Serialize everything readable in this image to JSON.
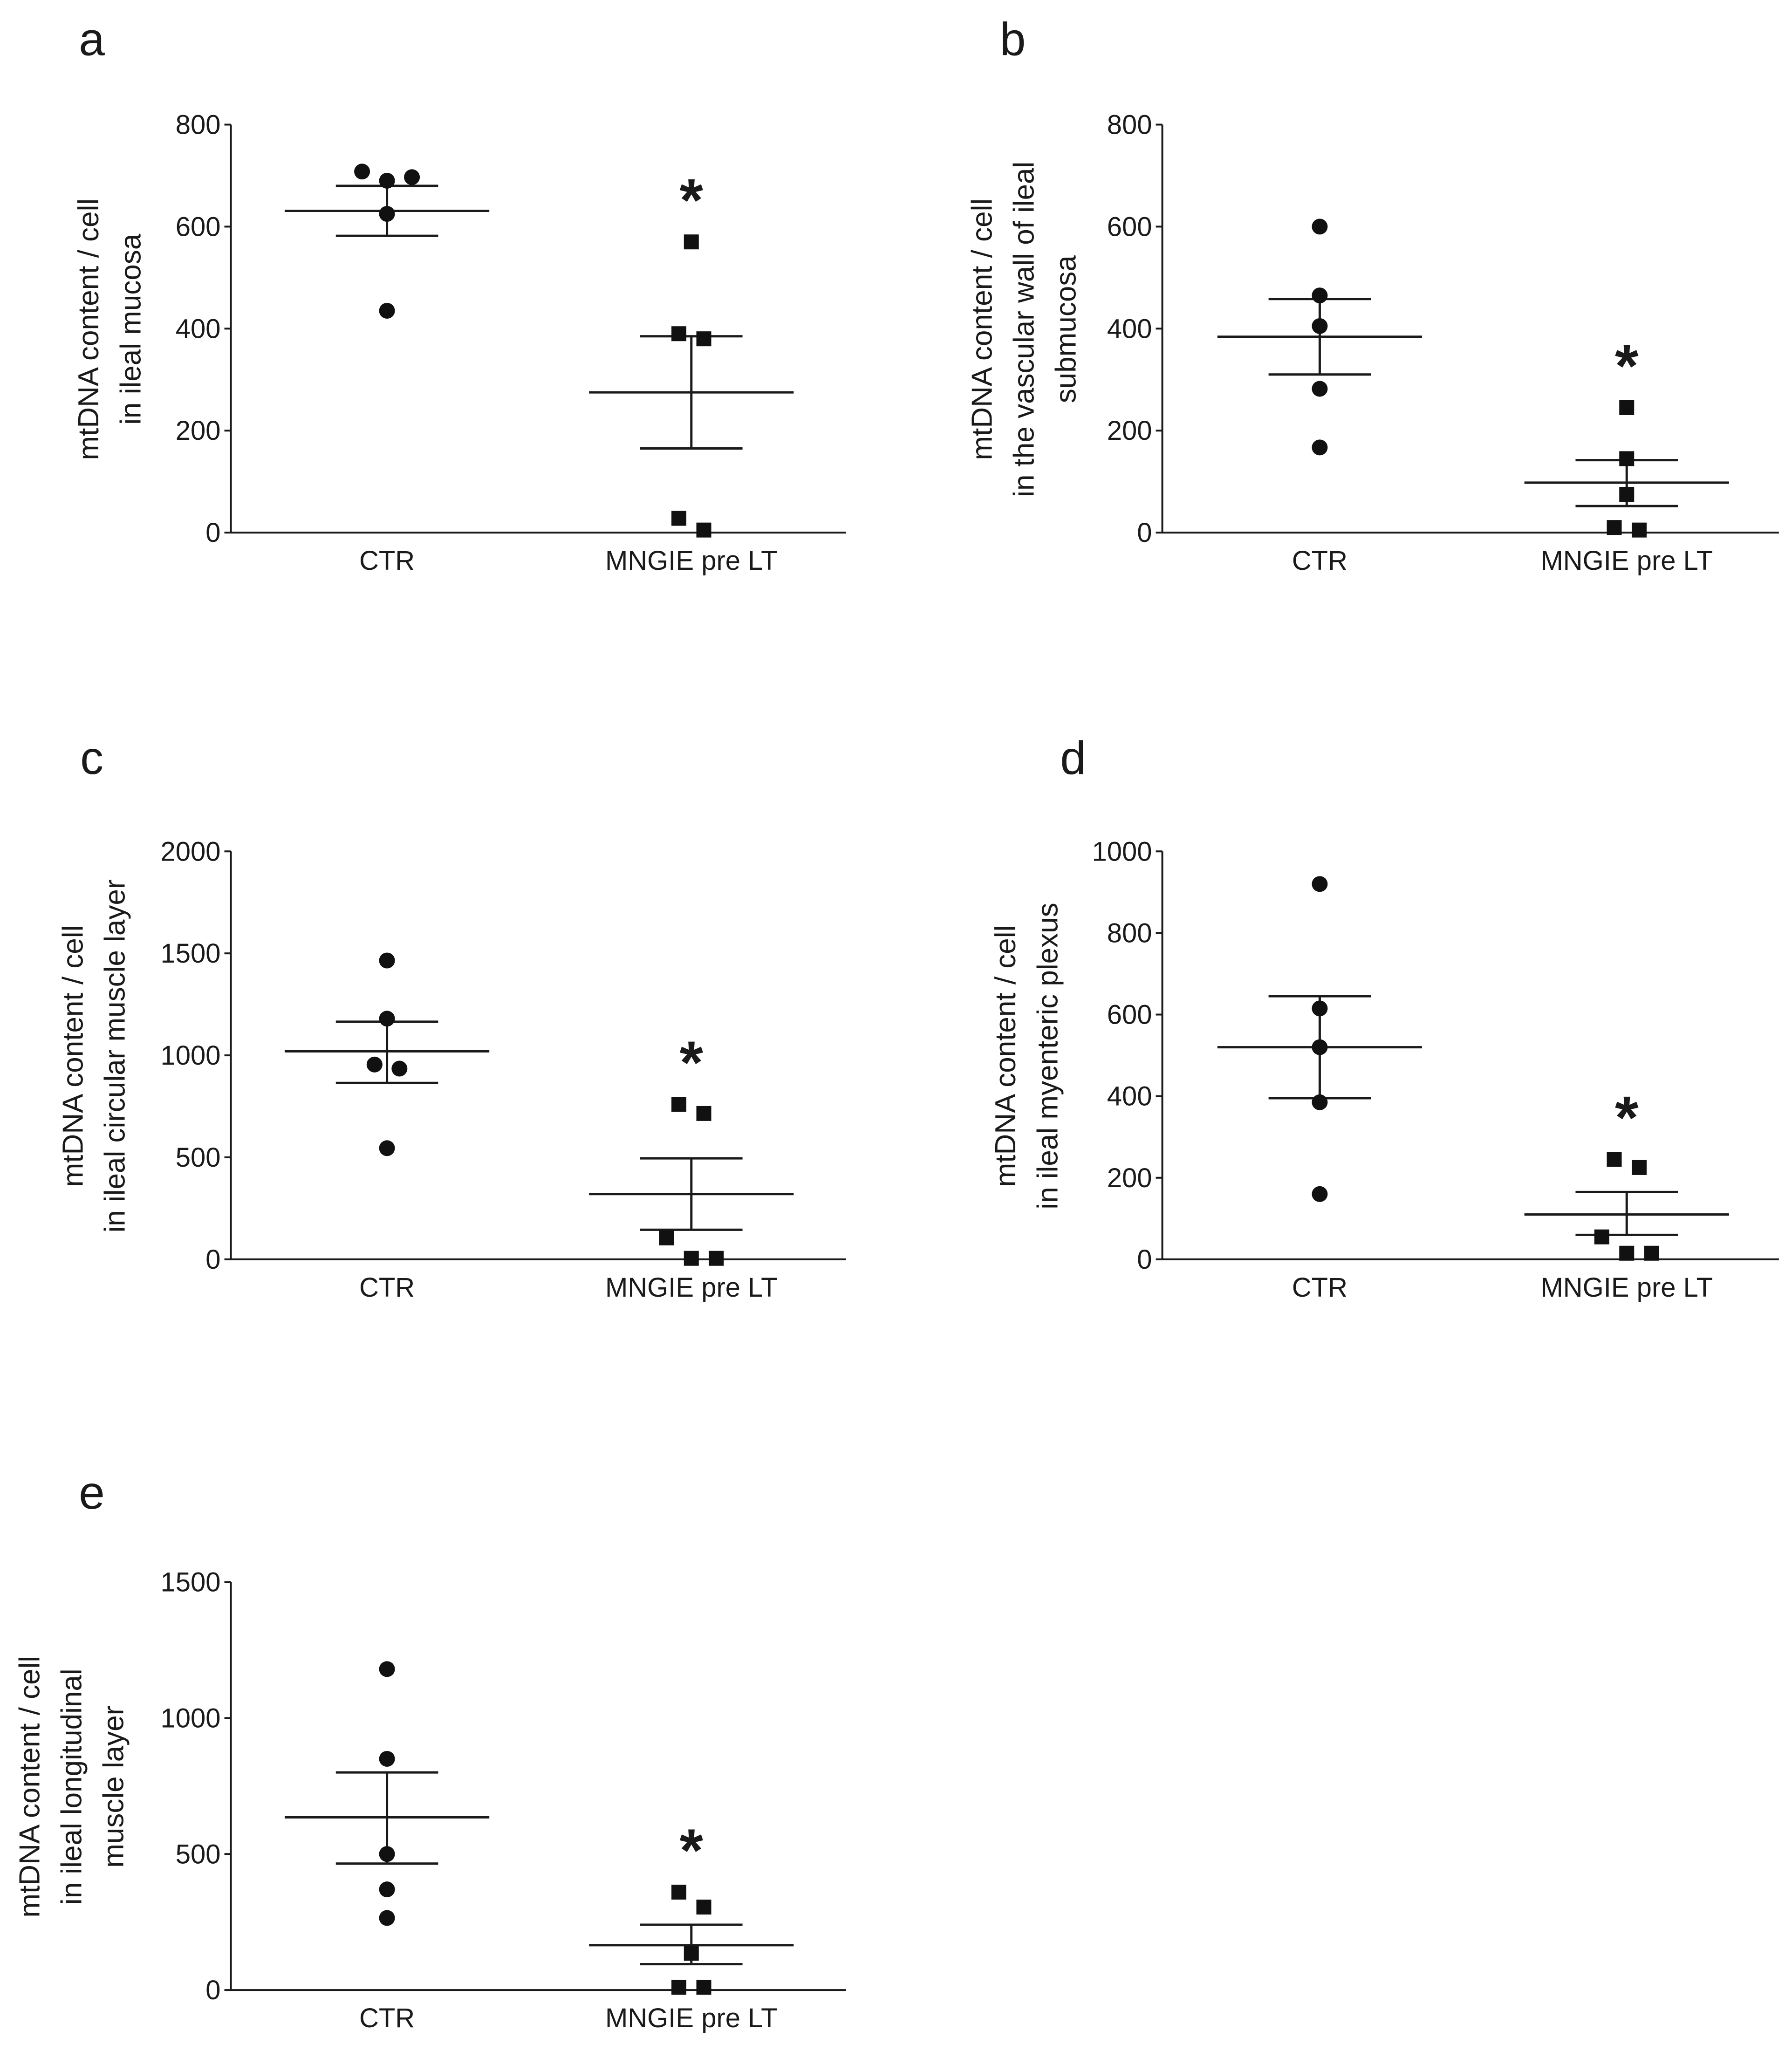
{
  "chart_data": [
    {
      "panel": "a",
      "type": "scatter",
      "ylabel": [
        "mtDNA content / cell",
        "in ileal mucosa"
      ],
      "ylim": [
        0,
        800
      ],
      "yticks": [
        0,
        200,
        400,
        600,
        800
      ],
      "categories": [
        "CTR",
        "MNGIE pre LT"
      ],
      "groups": [
        {
          "category": "CTR",
          "marker": "circle",
          "values": [
            708,
            690,
            697,
            625,
            435
          ],
          "mean": 631,
          "sem_low": 582,
          "sem_high": 680
        },
        {
          "category": "MNGIE pre LT",
          "marker": "square",
          "values": [
            570,
            390,
            380,
            28,
            5
          ],
          "mean": 275,
          "sem_low": 165,
          "sem_high": 385
        }
      ],
      "significance": "*"
    },
    {
      "panel": "b",
      "type": "scatter",
      "ylabel": [
        "mtDNA content / cell",
        "in the vascular wall of ileal",
        "submucosa"
      ],
      "ylim": [
        0,
        800
      ],
      "yticks": [
        0,
        200,
        400,
        600,
        800
      ],
      "categories": [
        "CTR",
        "MNGIE pre LT"
      ],
      "groups": [
        {
          "category": "CTR",
          "marker": "circle",
          "values": [
            600,
            465,
            405,
            282,
            167
          ],
          "mean": 384,
          "sem_low": 310,
          "sem_high": 458
        },
        {
          "category": "MNGIE pre LT",
          "marker": "square",
          "values": [
            245,
            145,
            75,
            10,
            5
          ],
          "mean": 98,
          "sem_low": 52,
          "sem_high": 142
        },
        {
          "category": "",
          "marker": "none",
          "values": []
        }
      ],
      "significance": "*"
    },
    {
      "panel": "c",
      "type": "scatter",
      "ylabel": [
        "mtDNA content / cell",
        "in ileal circular muscle layer"
      ],
      "ylim": [
        0,
        2000
      ],
      "yticks": [
        0,
        500,
        1000,
        1500,
        2000
      ],
      "categories": [
        "CTR",
        "MNGIE pre LT"
      ],
      "groups": [
        {
          "category": "CTR",
          "marker": "circle",
          "values": [
            1465,
            1180,
            955,
            935,
            545
          ],
          "mean": 1020,
          "sem_low": 865,
          "sem_high": 1165
        },
        {
          "category": "MNGIE pre LT",
          "marker": "square",
          "values": [
            760,
            715,
            105,
            5,
            5
          ],
          "mean": 320,
          "sem_low": 145,
          "sem_high": 495
        }
      ],
      "significance": "*"
    },
    {
      "panel": "d",
      "type": "scatter",
      "ylabel": [
        "mtDNA content / cell",
        "in ileal myenteric plexus"
      ],
      "ylim": [
        0,
        1000
      ],
      "yticks": [
        0,
        200,
        400,
        600,
        800,
        1000
      ],
      "categories": [
        "CTR",
        "MNGIE pre LT"
      ],
      "groups": [
        {
          "category": "CTR",
          "marker": "circle",
          "values": [
            920,
            615,
            520,
            385,
            160
          ],
          "mean": 520,
          "sem_low": 395,
          "sem_high": 645
        },
        {
          "category": "MNGIE pre LT",
          "marker": "square",
          "values": [
            245,
            225,
            55,
            15,
            15
          ],
          "mean": 110,
          "sem_low": 60,
          "sem_high": 165
        }
      ],
      "significance": "*"
    },
    {
      "panel": "e",
      "type": "scatter",
      "ylabel": [
        "mtDNA content / cell",
        "in ileal longitudinal",
        "muscle layer"
      ],
      "ylim": [
        0,
        1500
      ],
      "yticks": [
        0,
        500,
        1000,
        1500
      ],
      "categories": [
        "CTR",
        "MNGIE pre LT"
      ],
      "groups": [
        {
          "category": "CTR",
          "marker": "circle",
          "values": [
            1180,
            850,
            500,
            370,
            265
          ],
          "mean": 635,
          "sem_low": 465,
          "sem_high": 800
        },
        {
          "category": "MNGIE pre LT",
          "marker": "square",
          "values": [
            360,
            305,
            135,
            10,
            10
          ],
          "mean": 165,
          "sem_low": 95,
          "sem_high": 240
        }
      ],
      "significance": "*"
    }
  ]
}
